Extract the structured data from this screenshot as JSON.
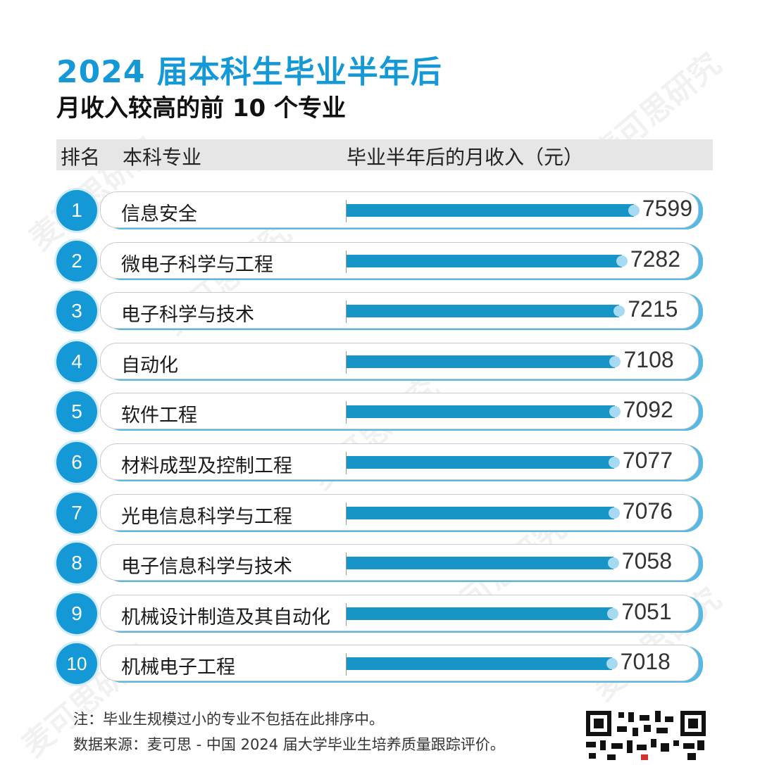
{
  "title_line1": "2024 届本科生毕业半年后",
  "title_line2": "月收入较高的前 10 个专业",
  "header": {
    "rank": "排名",
    "major": "本科专业",
    "income": "毕业半年后的月收入（元）"
  },
  "watermark_text": "麦可思研究",
  "colors": {
    "accent": "#1599d6",
    "bar": "#1895c7",
    "bar_cap": "#a6daf2"
  },
  "chart_data": {
    "type": "bar",
    "orientation": "horizontal",
    "title": "2024 届本科生毕业半年后月收入较高的前 10 个专业",
    "ylabel": "毕业半年后的月收入（元）",
    "ranks": [
      "1",
      "2",
      "3",
      "4",
      "5",
      "6",
      "7",
      "8",
      "9",
      "10"
    ],
    "categories": [
      "信息安全",
      "微电子科学与工程",
      "电子科学与技术",
      "自动化",
      "软件工程",
      "材料成型及控制工程",
      "光电信息科学与工程",
      "电子信息科学与技术",
      "机械设计制造及其自动化",
      "机械电子工程"
    ],
    "values": [
      7599,
      7282,
      7215,
      7108,
      7092,
      7077,
      7076,
      7058,
      7051,
      7018
    ],
    "grid": false,
    "legend": "none"
  },
  "notes": {
    "note": "注：毕业生规模过小的专业不包括在此排序中。",
    "source": "数据来源：麦可思 - 中国 2024 届大学毕业生培养质量跟踪评价。"
  }
}
